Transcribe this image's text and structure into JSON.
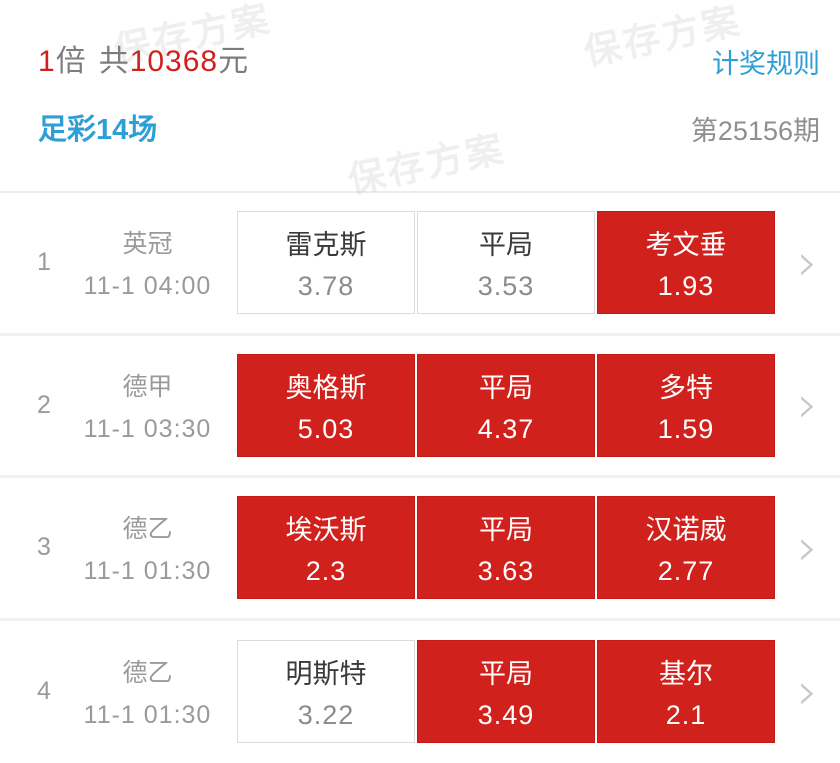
{
  "header": {
    "multiplier": "1",
    "multiplier_unit": "倍",
    "total_prefix": "共",
    "total_amount": "10368",
    "total_unit": "元",
    "rules_link": "计奖规则",
    "lottery_type": "足彩14场",
    "issue": "第25156期"
  },
  "watermark": {
    "text": "保存方案"
  },
  "icons": {
    "chevron_right": "›"
  },
  "colors": {
    "selected_red": "#d1211c",
    "accent_blue": "#2e9fd6",
    "muted_gray": "#9a9a9a",
    "watermark_gray": "rgba(120,120,120,0.12)"
  },
  "matches": [
    {
      "index": "1",
      "league": "英冠",
      "time": "11-1 04:00",
      "options": [
        {
          "label": "雷克斯",
          "odds": "3.78",
          "selected": false
        },
        {
          "label": "平局",
          "odds": "3.53",
          "selected": false
        },
        {
          "label": "考文垂",
          "odds": "1.93",
          "selected": true
        }
      ]
    },
    {
      "index": "2",
      "league": "德甲",
      "time": "11-1 03:30",
      "options": [
        {
          "label": "奥格斯",
          "odds": "5.03",
          "selected": true
        },
        {
          "label": "平局",
          "odds": "4.37",
          "selected": true
        },
        {
          "label": "多特",
          "odds": "1.59",
          "selected": true
        }
      ]
    },
    {
      "index": "3",
      "league": "德乙",
      "time": "11-1 01:30",
      "options": [
        {
          "label": "埃沃斯",
          "odds": "2.3",
          "selected": true
        },
        {
          "label": "平局",
          "odds": "3.63",
          "selected": true
        },
        {
          "label": "汉诺威",
          "odds": "2.77",
          "selected": true
        }
      ]
    },
    {
      "index": "4",
      "league": "德乙",
      "time": "11-1 01:30",
      "options": [
        {
          "label": "明斯特",
          "odds": "3.22",
          "selected": false
        },
        {
          "label": "平局",
          "odds": "3.49",
          "selected": true
        },
        {
          "label": "基尔",
          "odds": "2.1",
          "selected": true
        }
      ]
    }
  ]
}
